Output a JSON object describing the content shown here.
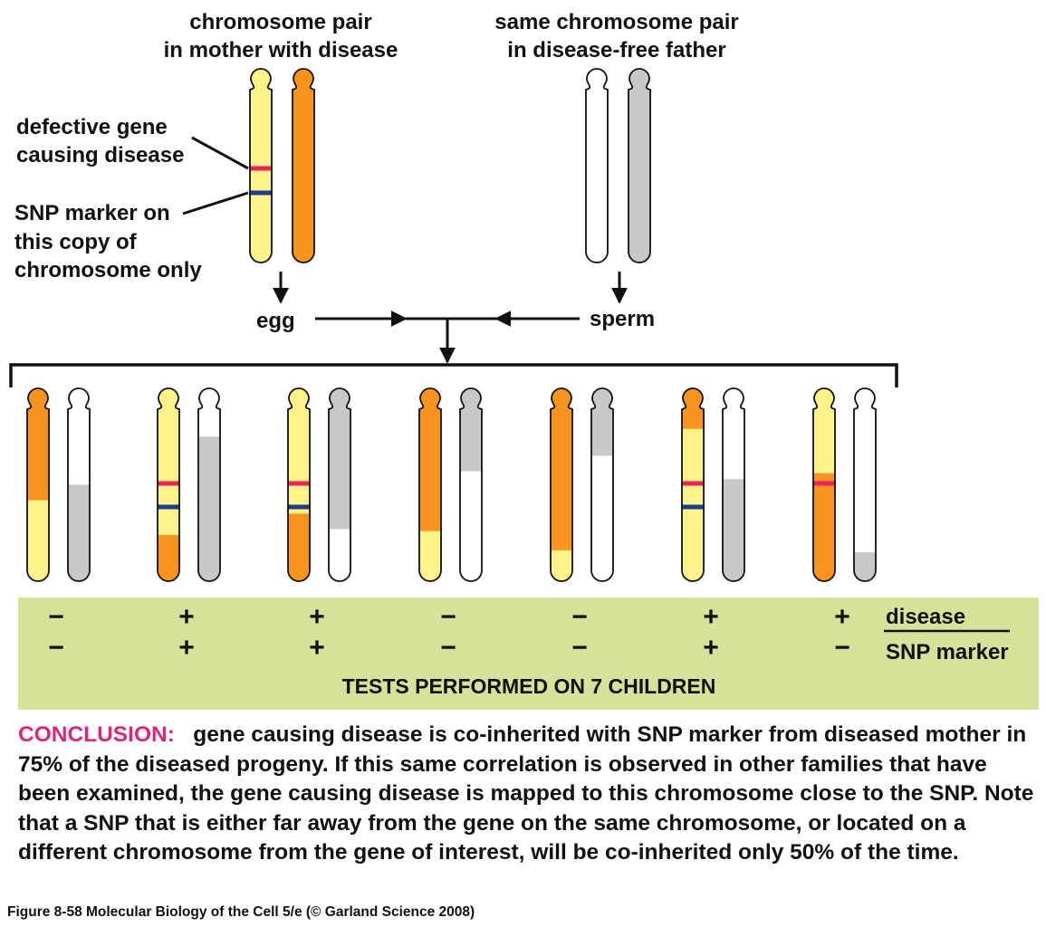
{
  "headings": {
    "mother": [
      "chromosome pair",
      "in mother with disease"
    ],
    "father": [
      "same chromosome pair",
      "in disease-free father"
    ]
  },
  "annotations": {
    "defective_gene": [
      "defective gene",
      "causing disease"
    ],
    "snp_marker": [
      "SNP marker on",
      "this copy of",
      "chromosome only"
    ]
  },
  "gametes": {
    "egg": "egg",
    "sperm": "sperm"
  },
  "colors": {
    "mother_copy_1": "#fdf38a",
    "mother_copy_2": "#f7941d",
    "father_copy_1": "#ffffff",
    "father_copy_2": "#c8c9c7",
    "disease_gene": "#e8265e",
    "snp_marker": "#1f3a8a",
    "results_panel": "#d6e29a",
    "conclusion_keyword": "#d9267a"
  },
  "children": [
    {
      "maternal": [
        [
          "orange",
          0.58
        ],
        [
          "yellow",
          0.42
        ]
      ],
      "paternal": [
        [
          "white",
          0.5
        ],
        [
          "gray",
          0.5
        ]
      ],
      "disease_mark": false,
      "snp_mark": false,
      "disease": "−",
      "snp": "−"
    },
    {
      "maternal": [
        [
          "yellow",
          0.76
        ],
        [
          "orange",
          0.24
        ]
      ],
      "paternal": [
        [
          "white",
          0.25
        ],
        [
          "gray",
          0.75
        ]
      ],
      "disease_mark": true,
      "snp_mark": true,
      "disease": "+",
      "snp": "+"
    },
    {
      "maternal": [
        [
          "yellow",
          0.65
        ],
        [
          "orange",
          0.35
        ]
      ],
      "paternal": [
        [
          "gray",
          0.73
        ],
        [
          "white",
          0.27
        ]
      ],
      "disease_mark": true,
      "snp_mark": true,
      "disease": "+",
      "snp": "+"
    },
    {
      "maternal": [
        [
          "orange",
          0.74
        ],
        [
          "yellow",
          0.26
        ]
      ],
      "paternal": [
        [
          "gray",
          0.43
        ],
        [
          "white",
          0.57
        ]
      ],
      "disease_mark": false,
      "snp_mark": false,
      "disease": "−",
      "snp": "−"
    },
    {
      "maternal": [
        [
          "orange",
          0.84
        ],
        [
          "yellow",
          0.16
        ]
      ],
      "paternal": [
        [
          "gray",
          0.35
        ],
        [
          "white",
          0.65
        ]
      ],
      "disease_mark": false,
      "snp_mark": false,
      "disease": "−",
      "snp": "−"
    },
    {
      "maternal": [
        [
          "orange",
          0.21
        ],
        [
          "yellow",
          0.79
        ]
      ],
      "paternal": [
        [
          "white",
          0.47
        ],
        [
          "gray",
          0.53
        ]
      ],
      "disease_mark": true,
      "snp_mark": true,
      "disease": "+",
      "snp": "+"
    },
    {
      "maternal": [
        [
          "yellow",
          0.44
        ],
        [
          "orange",
          0.56
        ]
      ],
      "paternal": [
        [
          "white",
          0.85
        ],
        [
          "gray",
          0.15
        ]
      ],
      "disease_mark": true,
      "snp_mark": false,
      "disease": "+",
      "snp": "−"
    }
  ],
  "results": {
    "disease_label": "disease",
    "snp_label": "SNP marker",
    "footer": "TESTS PERFORMED ON 7 CHILDREN"
  },
  "conclusion": {
    "keyword": "CONCLUSION:",
    "text": "gene causing disease is co-inherited with SNP marker from diseased mother in 75% of the diseased progeny. If this same correlation is observed in other families that have been examined, the gene causing disease is mapped to this chromosome close to the SNP. Note that a SNP that is either far away from the gene on the same chromosome, or located on a different chromosome from the gene of interest, will be co-inherited only 50% of the time."
  },
  "caption": "Figure 8-58  Molecular Biology of the Cell 5/e (© Garland Science 2008)"
}
